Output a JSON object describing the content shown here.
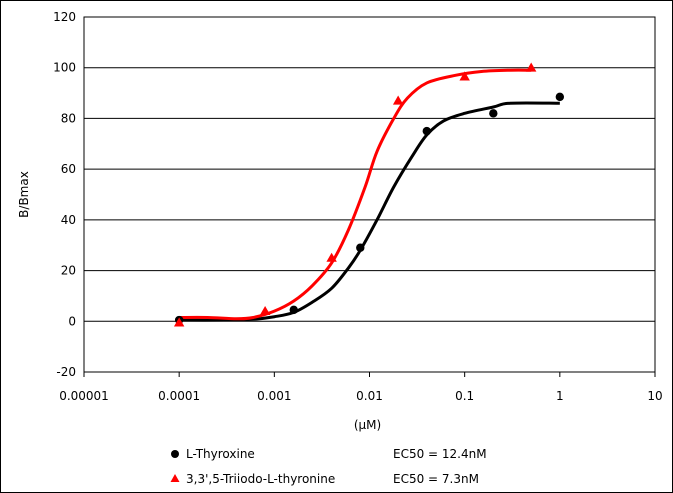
{
  "chart_data": {
    "type": "scatter",
    "xscale": "log",
    "xlim": [
      1e-05,
      10
    ],
    "ylim": [
      -20,
      120
    ],
    "yticks": [
      -20,
      0,
      20,
      40,
      60,
      80,
      100,
      120
    ],
    "xtick_labels": [
      "0.00001",
      "0.0001",
      "0.001",
      "0.01",
      "0.1",
      "1",
      "10"
    ],
    "xticks": [
      1e-05,
      0.0001,
      0.001,
      0.01,
      0.1,
      1,
      10
    ],
    "xlabel": "(μM)",
    "ylabel": "B/Bmax",
    "grid": "horizontal",
    "legend_position": "bottom",
    "series": [
      {
        "name": "L-Thyroxine",
        "ec50_label": "EC50 = 12.4nM",
        "color": "#000000",
        "marker": "circle",
        "points": [
          {
            "x": 0.0001,
            "y": 0.5
          },
          {
            "x": 0.0016,
            "y": 4.5
          },
          {
            "x": 0.008,
            "y": 29
          },
          {
            "x": 0.04,
            "y": 75
          },
          {
            "x": 0.2,
            "y": 82
          },
          {
            "x": 1.0,
            "y": 88.5
          }
        ],
        "curve": [
          {
            "x": 0.0001,
            "y": 0.5
          },
          {
            "x": 0.0003,
            "y": 0.5
          },
          {
            "x": 0.0006,
            "y": 0.8
          },
          {
            "x": 0.001,
            "y": 1.8
          },
          {
            "x": 0.0016,
            "y": 3.5
          },
          {
            "x": 0.0025,
            "y": 7.5
          },
          {
            "x": 0.004,
            "y": 13
          },
          {
            "x": 0.006,
            "y": 21
          },
          {
            "x": 0.008,
            "y": 28
          },
          {
            "x": 0.012,
            "y": 40
          },
          {
            "x": 0.018,
            "y": 53
          },
          {
            "x": 0.028,
            "y": 65
          },
          {
            "x": 0.04,
            "y": 73.5
          },
          {
            "x": 0.06,
            "y": 79
          },
          {
            "x": 0.1,
            "y": 82
          },
          {
            "x": 0.2,
            "y": 84.5
          },
          {
            "x": 0.3,
            "y": 86
          },
          {
            "x": 1.0,
            "y": 86
          }
        ]
      },
      {
        "name": "3,3',5-Triiodo-L-thyronine",
        "ec50_label": "EC50 = 7.3nM",
        "color": "#ff0000",
        "marker": "triangle",
        "points": [
          {
            "x": 0.0001,
            "y": -0.5
          },
          {
            "x": 0.0008,
            "y": 4
          },
          {
            "x": 0.004,
            "y": 25
          },
          {
            "x": 0.02,
            "y": 87
          },
          {
            "x": 0.1,
            "y": 96.5
          },
          {
            "x": 0.5,
            "y": 100
          }
        ],
        "curve": [
          {
            "x": 0.0001,
            "y": 1.5
          },
          {
            "x": 0.0002,
            "y": 1.5
          },
          {
            "x": 0.0004,
            "y": 1.0
          },
          {
            "x": 0.0006,
            "y": 1.5
          },
          {
            "x": 0.001,
            "y": 4
          },
          {
            "x": 0.0016,
            "y": 8
          },
          {
            "x": 0.0025,
            "y": 14
          },
          {
            "x": 0.004,
            "y": 23
          },
          {
            "x": 0.006,
            "y": 36
          },
          {
            "x": 0.009,
            "y": 53
          },
          {
            "x": 0.012,
            "y": 67
          },
          {
            "x": 0.018,
            "y": 80
          },
          {
            "x": 0.025,
            "y": 88
          },
          {
            "x": 0.04,
            "y": 94
          },
          {
            "x": 0.08,
            "y": 97
          },
          {
            "x": 0.15,
            "y": 98.5
          },
          {
            "x": 0.3,
            "y": 99
          },
          {
            "x": 0.5,
            "y": 99
          }
        ]
      }
    ]
  }
}
